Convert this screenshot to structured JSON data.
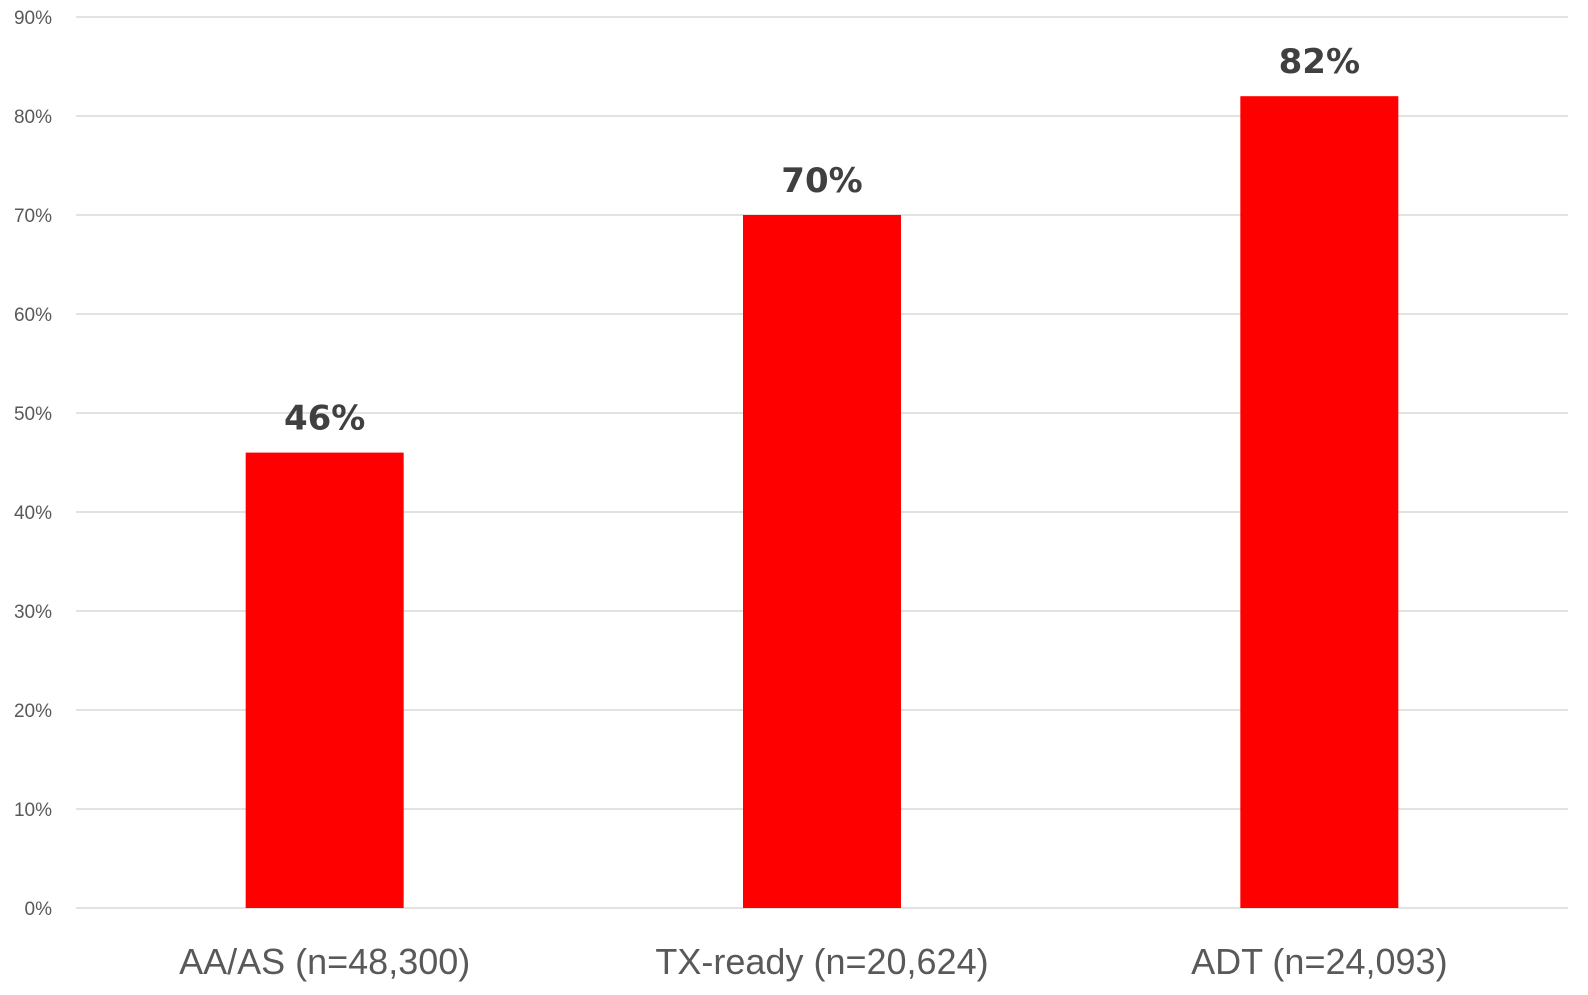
{
  "chart_data": {
    "type": "bar",
    "title": "",
    "xlabel": "",
    "ylabel": "",
    "categories": [
      "AA/AS (n=48,300)",
      "TX-ready (n=20,624)",
      "ADT (n=24,093)"
    ],
    "values": [
      46,
      70,
      82
    ],
    "value_labels": [
      "46%",
      "70%",
      "82%"
    ],
    "ylim": [
      0,
      90
    ],
    "yticks": [
      0,
      10,
      20,
      30,
      40,
      50,
      60,
      70,
      80,
      90
    ],
    "ytick_labels": [
      "0%",
      "10%",
      "20%",
      "30%",
      "40%",
      "50%",
      "60%",
      "70%",
      "80%",
      "90%"
    ],
    "grid": true,
    "legend": "none",
    "bar_color": "#ff0000"
  }
}
